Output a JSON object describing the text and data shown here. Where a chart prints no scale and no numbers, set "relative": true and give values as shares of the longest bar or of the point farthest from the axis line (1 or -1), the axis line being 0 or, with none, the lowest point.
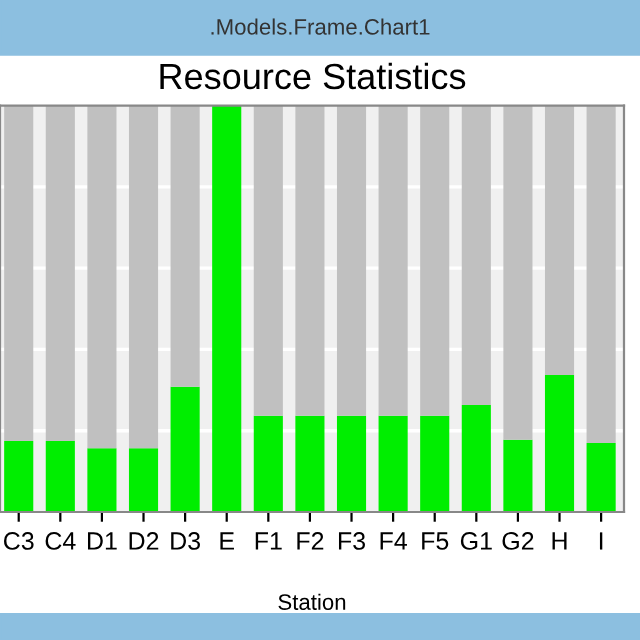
{
  "chart_data": {
    "type": "bar",
    "title": "Resource Statistics",
    "xlabel": "Station",
    "annotations": [
      ".Models.Frame.Chart1"
    ],
    "categories": [
      "C3",
      "C4",
      "D1",
      "D2",
      "D3",
      "E",
      "F1",
      "F2",
      "F3",
      "F4",
      "F5",
      "G1",
      "G2",
      "H",
      "I"
    ],
    "relative": true,
    "stacked": true,
    "grid": "y",
    "legend": false,
    "series": [
      {
        "color": "#00ee00",
        "values": [
          0.175,
          0.175,
          0.157,
          0.157,
          0.308,
          1.0,
          0.237,
          0.237,
          0.237,
          0.237,
          0.237,
          0.263,
          0.178,
          0.337,
          0.17
        ]
      },
      {
        "color": "#c0c0c0",
        "values": [
          0.825,
          0.825,
          0.843,
          0.843,
          0.692,
          0.0,
          0.763,
          0.763,
          0.763,
          0.763,
          0.763,
          0.737,
          0.822,
          0.663,
          0.83
        ]
      }
    ]
  }
}
